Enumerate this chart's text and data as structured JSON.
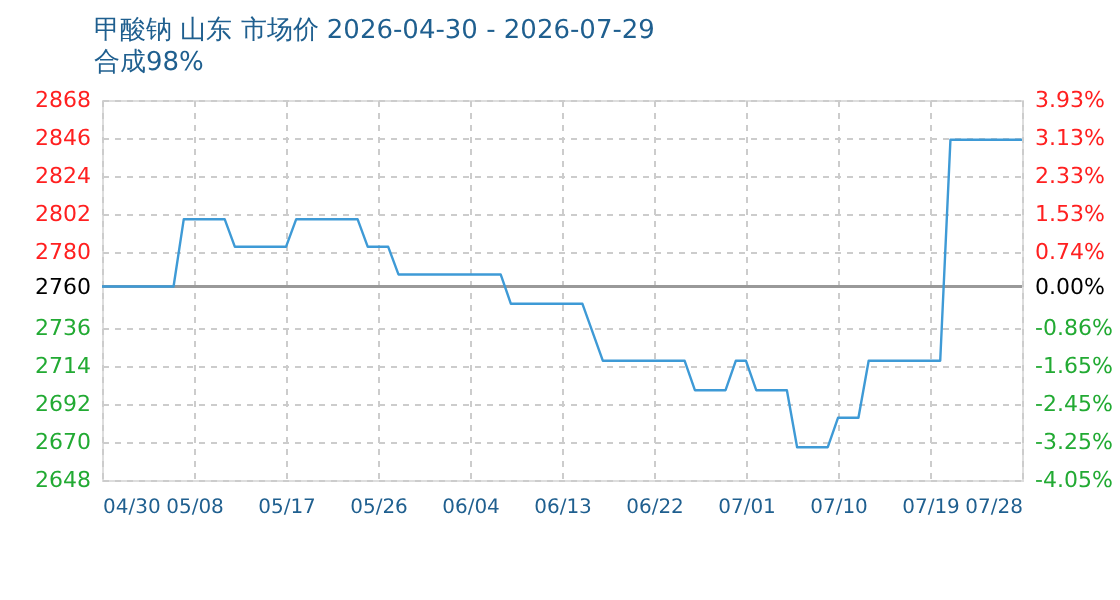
{
  "chart_data": {
    "type": "line",
    "title": "甲酸钠 山东 市场价 2026-04-30 - 2026-07-29",
    "subtitle": "合成98%",
    "series": [
      {
        "color": "#3e9ad6",
        "x": [
          "2026-04-29",
          "2026-05-06",
          "2026-05-07",
          "2026-05-11",
          "2026-05-12",
          "2026-05-17",
          "2026-05-18",
          "2026-05-24",
          "2026-05-25",
          "2026-05-27",
          "2026-05-28",
          "2026-06-07",
          "2026-06-08",
          "2026-06-15",
          "2026-06-17",
          "2026-06-25",
          "2026-06-26",
          "2026-06-29",
          "2026-06-30",
          "2026-07-01",
          "2026-07-02",
          "2026-07-05",
          "2026-07-06",
          "2026-07-09",
          "2026-07-10",
          "2026-07-12",
          "2026-07-13",
          "2026-07-20",
          "2026-07-21",
          "2026-07-28"
        ],
        "values": [
          2760,
          2760,
          2799,
          2799,
          2783,
          2783,
          2799,
          2799,
          2783,
          2783,
          2767,
          2767,
          2750,
          2750,
          2717,
          2717,
          2700,
          2700,
          2717,
          2717,
          2700,
          2700,
          2667,
          2667,
          2684,
          2684,
          2717,
          2717,
          2845,
          2845
        ]
      }
    ],
    "xlim": [
      "2026-04-29",
      "2026-07-28"
    ],
    "xticks": [
      {
        "value": "2026-04-29",
        "label": "04/30"
      },
      {
        "value": "2026-05-08",
        "label": "05/08"
      },
      {
        "value": "2026-05-17",
        "label": "05/17"
      },
      {
        "value": "2026-05-26",
        "label": "05/26"
      },
      {
        "value": "2026-06-04",
        "label": "06/04"
      },
      {
        "value": "2026-06-13",
        "label": "06/13"
      },
      {
        "value": "2026-06-22",
        "label": "06/22"
      },
      {
        "value": "2026-07-01",
        "label": "07/01"
      },
      {
        "value": "2026-07-10",
        "label": "07/10"
      },
      {
        "value": "2026-07-19",
        "label": "07/19"
      },
      {
        "value": "2026-07-28",
        "label": "07/28"
      }
    ],
    "ylim": [
      2648,
      2868
    ],
    "yticks": [
      2648,
      2670,
      2692,
      2714,
      2736,
      2760,
      2780,
      2802,
      2824,
      2846,
      2868
    ],
    "y2lim": [
      -4.05,
      3.93
    ],
    "y2ticks": [
      {
        "value": -4.05,
        "label": "-4.05%"
      },
      {
        "value": -3.25,
        "label": "-3.25%"
      },
      {
        "value": -2.45,
        "label": "-2.45%"
      },
      {
        "value": -1.65,
        "label": "-1.65%"
      },
      {
        "value": -0.86,
        "label": "-0.86%"
      },
      {
        "value": 0,
        "label": "0.00%"
      },
      {
        "value": 0.74,
        "label": "0.74%"
      },
      {
        "value": 1.53,
        "label": "1.53%"
      },
      {
        "value": 2.33,
        "label": "2.33%"
      },
      {
        "value": 3.13,
        "label": "3.13%"
      },
      {
        "value": 3.93,
        "label": "3.93%"
      }
    ],
    "ref_lines": [
      {
        "axis": "y",
        "value": 2760,
        "color": "#999999"
      }
    ],
    "grid": true,
    "marker": "none",
    "line_style": "solid"
  }
}
